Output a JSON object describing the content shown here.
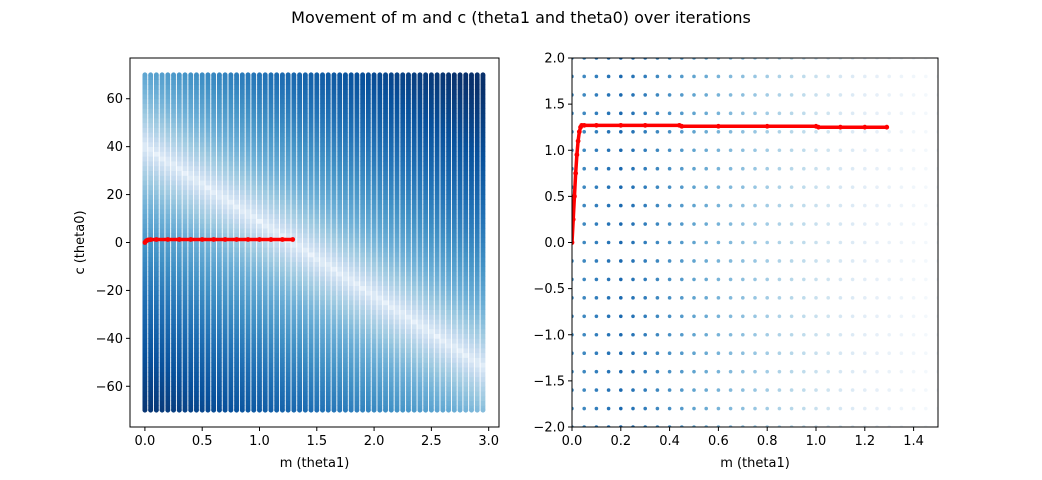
{
  "figure": {
    "suptitle": "Movement of m and c (theta1 and theta0) over iterations"
  },
  "colors": {
    "path": "#ff0000",
    "cmap_light": "#f7fbff",
    "cmap_dark": "#08306b",
    "axes_edge": "#000000"
  },
  "chart_data": [
    {
      "type": "scatter",
      "title": "",
      "xlabel": "m (theta1)",
      "ylabel": "c (theta0)",
      "xlim": [
        -0.13,
        3.09
      ],
      "ylim": [
        -77,
        77
      ],
      "xticks": [
        0.0,
        0.5,
        1.0,
        1.5,
        2.0,
        2.5,
        3.0
      ],
      "xtick_labels": [
        "0.0",
        "0.5",
        "1.0",
        "1.5",
        "2.0",
        "2.5",
        "3.0"
      ],
      "yticks": [
        -60,
        -40,
        -20,
        0,
        20,
        40,
        60
      ],
      "ytick_labels": [
        "−60",
        "−40",
        "−20",
        "0",
        "20",
        "40",
        "60"
      ],
      "grid": false,
      "background": {
        "kind": "cost-grid",
        "m_start": 0.0,
        "m_stop": 2.95,
        "m_step": 0.05,
        "c_start": -70,
        "c_stop": 70,
        "colormap": "Blues",
        "min_cost_line": {
          "slope": -31,
          "intercept": 40
        }
      },
      "series": [
        {
          "color": "#ff0000",
          "x": [
            0.0,
            0.01,
            0.02,
            0.03,
            0.05,
            0.1,
            0.2,
            0.3,
            0.4,
            0.5,
            0.6,
            0.7,
            0.8,
            0.9,
            1.0,
            1.1,
            1.2,
            1.29
          ],
          "y": [
            0.0,
            0.6,
            0.9,
            1.1,
            1.2,
            1.25,
            1.26,
            1.26,
            1.26,
            1.26,
            1.26,
            1.26,
            1.26,
            1.26,
            1.26,
            1.25,
            1.25,
            1.25
          ]
        }
      ]
    },
    {
      "type": "scatter",
      "title": "",
      "xlabel": "m (theta1)",
      "ylabel": "",
      "xlim": [
        0.0,
        1.5
      ],
      "ylim": [
        -2.0,
        2.0
      ],
      "xticks": [
        0.0,
        0.2,
        0.4,
        0.6,
        0.8,
        1.0,
        1.2,
        1.4
      ],
      "xtick_labels": [
        "0.0",
        "0.2",
        "0.4",
        "0.6",
        "0.8",
        "1.0",
        "1.2",
        "1.4"
      ],
      "yticks": [
        -2.0,
        -1.5,
        -1.0,
        -0.5,
        0.0,
        0.5,
        1.0,
        1.5,
        2.0
      ],
      "ytick_labels": [
        "−2.0",
        "−1.5",
        "−1.0",
        "−0.5",
        "0.0",
        "0.5",
        "1.0",
        "1.5",
        "2.0"
      ],
      "grid": false,
      "background": {
        "kind": "cost-grid-dots",
        "m_start": 0.0,
        "m_stop": 1.5,
        "m_step": 0.05,
        "c_start": -2.0,
        "c_stop": 2.0,
        "c_step": 0.2,
        "colormap": "Blues"
      },
      "series": [
        {
          "color": "#ff0000",
          "x": [
            0.0,
            0.005,
            0.01,
            0.015,
            0.02,
            0.025,
            0.03,
            0.035,
            0.04,
            0.05,
            0.1,
            0.2,
            0.3,
            0.44,
            0.45,
            0.6,
            0.8,
            1.0,
            1.01,
            1.1,
            1.2,
            1.29
          ],
          "y": [
            0.0,
            0.25,
            0.5,
            0.75,
            0.95,
            1.1,
            1.2,
            1.25,
            1.27,
            1.27,
            1.27,
            1.27,
            1.27,
            1.27,
            1.26,
            1.26,
            1.26,
            1.26,
            1.25,
            1.25,
            1.25,
            1.25
          ]
        }
      ]
    }
  ]
}
